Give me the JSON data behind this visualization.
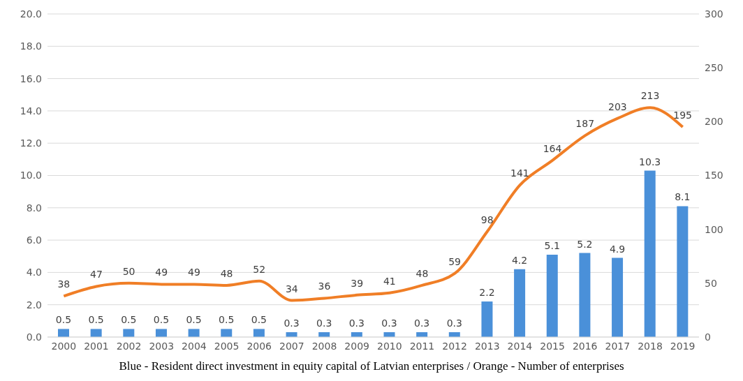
{
  "chart_data": {
    "type": "bar",
    "categories": [
      "2000",
      "2001",
      "2002",
      "2003",
      "2004",
      "2005",
      "2006",
      "2007",
      "2008",
      "2009",
      "2010",
      "2011",
      "2012",
      "2013",
      "2014",
      "2015",
      "2016",
      "2017",
      "2018",
      "2019"
    ],
    "series": [
      {
        "color": "#4a90d9",
        "values": [
          0.5,
          0.5,
          0.5,
          0.5,
          0.5,
          0.5,
          0.5,
          0.3,
          0.3,
          0.3,
          0.3,
          0.3,
          0.3,
          2.2,
          4.2,
          5.1,
          5.2,
          4.9,
          10.3,
          8.1
        ]
      },
      {
        "type": "line",
        "axis": "y2",
        "color": "#f07e26",
        "values": [
          38,
          47,
          50,
          49,
          49,
          48,
          52,
          34,
          36,
          39,
          41,
          48,
          59,
          98,
          141,
          164,
          187,
          203,
          213,
          195
        ]
      }
    ],
    "ylim": [
      0,
      20
    ],
    "yticks": [
      {
        "value": 0,
        "label": "0.0"
      },
      {
        "value": 2,
        "label": "2.0"
      },
      {
        "value": 4,
        "label": "4.0"
      },
      {
        "value": 6,
        "label": "6.0"
      },
      {
        "value": 8,
        "label": "8.0"
      },
      {
        "value": 10,
        "label": "10.0"
      },
      {
        "value": 12,
        "label": "12.0"
      },
      {
        "value": 14,
        "label": "14.0"
      },
      {
        "value": 16,
        "label": "16.0"
      },
      {
        "value": 18,
        "label": "18.0"
      },
      {
        "value": 20,
        "label": "20.0"
      }
    ],
    "y2lim": [
      0,
      300
    ],
    "y2ticks": [
      0,
      50,
      100,
      150,
      200,
      250,
      300
    ],
    "grid": "y",
    "data_labels": true,
    "marker": "none",
    "line_style": "solid",
    "annotations": [
      "Blue - Resident direct investment in equity capital of Latvian enterprises / Orange - Number of enterprises"
    ]
  }
}
